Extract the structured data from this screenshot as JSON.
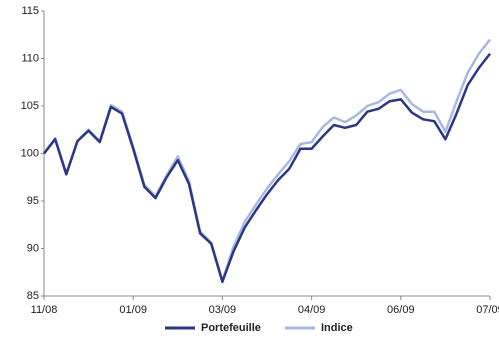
{
  "chart_data": {
    "type": "line",
    "categories": [
      "11/08",
      null,
      null,
      null,
      null,
      null,
      null,
      null,
      "01/09",
      null,
      null,
      null,
      null,
      null,
      null,
      null,
      "03/09",
      null,
      null,
      null,
      null,
      null,
      null,
      null,
      "04/09",
      null,
      null,
      null,
      null,
      null,
      null,
      null,
      "06/09",
      null,
      null,
      null,
      null,
      null,
      null,
      null,
      "07/09"
    ],
    "series": [
      {
        "name": "Portefeuille",
        "color": "#2b3684",
        "values": [
          100,
          101.5,
          97.8,
          101.3,
          102.4,
          101.2,
          104.9,
          104.2,
          100.5,
          96.5,
          95.3,
          97.5,
          99.3,
          96.8,
          91.6,
          90.5,
          86.5,
          89.7,
          92.2,
          94,
          95.7,
          97.2,
          98.4,
          100.5,
          100.5,
          101.8,
          103,
          102.7,
          103,
          104.4,
          104.7,
          105.5,
          105.7,
          104.3,
          103.6,
          103.4,
          101.5,
          104.2,
          107.2,
          109,
          110.5
        ]
      },
      {
        "name": "Indice",
        "color": "#a8b8e4",
        "values": [
          100,
          101.6,
          97.9,
          101.3,
          102.5,
          101.3,
          105.1,
          104.4,
          100.7,
          96.7,
          95.5,
          97.7,
          99.7,
          97.1,
          91.8,
          90.6,
          86.6,
          90.2,
          92.8,
          94.6,
          96.3,
          97.8,
          99.2,
          101,
          101.2,
          102.8,
          103.8,
          103.3,
          104,
          105,
          105.4,
          106.3,
          106.7,
          105.2,
          104.4,
          104.4,
          102.3,
          105.5,
          108.5,
          110.5,
          112
        ]
      }
    ],
    "ylim": [
      85,
      115
    ],
    "yticks": [
      85,
      90,
      95,
      100,
      105,
      110,
      115
    ],
    "grid": false
  }
}
